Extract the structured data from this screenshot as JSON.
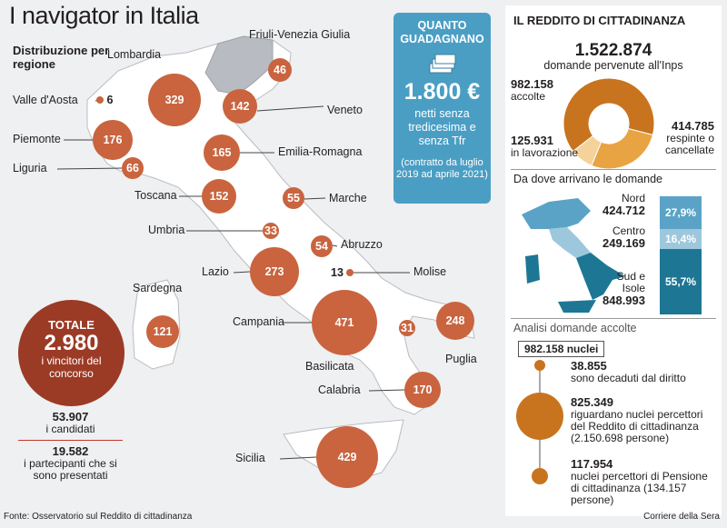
{
  "title": "I navigator in Italia",
  "subtitle": "Distribuzione per regione",
  "regions": [
    {
      "name": "Valle d'Aosta",
      "value": "6"
    },
    {
      "name": "Piemonte",
      "value": "176"
    },
    {
      "name": "Liguria",
      "value": "66"
    },
    {
      "name": "Lombardia",
      "value": "329"
    },
    {
      "name": "Friuli-Venezia Giulia",
      "value": "46"
    },
    {
      "name": "Veneto",
      "value": "142"
    },
    {
      "name": "Emilia-Romagna",
      "value": "165"
    },
    {
      "name": "Toscana",
      "value": "152"
    },
    {
      "name": "Marche",
      "value": "55"
    },
    {
      "name": "Umbria",
      "value": "33"
    },
    {
      "name": "Abruzzo",
      "value": "54"
    },
    {
      "name": "Lazio",
      "value": "273"
    },
    {
      "name": "Molise",
      "value": "13"
    },
    {
      "name": "Sardegna",
      "value": "121"
    },
    {
      "name": "Campania",
      "value": "471"
    },
    {
      "name": "Puglia",
      "value": "248"
    },
    {
      "name": "Basilicata",
      "value": "31"
    },
    {
      "name": "Calabria",
      "value": "170"
    },
    {
      "name": "Sicilia",
      "value": "429"
    }
  ],
  "total": {
    "label": "TOTALE",
    "value": "2.980",
    "desc": "i vincitori del concorso"
  },
  "candidates": {
    "value": "53.907",
    "label": "i candidati",
    "present_value": "19.582",
    "present_label": "i partecipanti che si sono presentati"
  },
  "earnings": {
    "title": "QUANTO GUADAGNANO",
    "amount": "1.800 €",
    "desc": "netti senza tredicesima e senza Tfr",
    "note": "(contratto da luglio 2019 ad aprile 2021)"
  },
  "rdc": {
    "title": "IL REDDITO DI CITTADINANZA",
    "total": "1.522.874",
    "total_label": "domande pervenute all'Inps",
    "accepted_value": "982.158",
    "accepted_label": "accolte",
    "rejected_value": "414.785",
    "rejected_label": "respinte o cancellate",
    "pending_value": "125.931",
    "pending_label": "in lavorazione",
    "donut": [
      982158,
      414785,
      125931
    ],
    "colors": {
      "accepted": "#c8741e",
      "rejected": "#e8a443",
      "pending": "#f4d29a",
      "bubble": "#c9643f",
      "teal1": "#5aa3c7",
      "teal2": "#9dc7dc",
      "teal3": "#1d7794"
    },
    "areas_title": "Da dove arrivano le domande",
    "areas": [
      {
        "name": "Nord",
        "value": "424.712",
        "pct": "27,9%"
      },
      {
        "name": "Centro",
        "value": "249.169",
        "pct": "16,4%"
      },
      {
        "name": "Sud e Isole",
        "value": "848.993",
        "pct": "55,7%"
      }
    ],
    "analysis_title": "Analisi domande accolte",
    "nuclei": "982.158 nuclei",
    "analysis": [
      {
        "value": "38.855",
        "desc": "sono decaduti dal diritto"
      },
      {
        "value": "825.349",
        "desc": "riguardano nuclei percettori del Reddito di cittadinanza (2.150.698 persone)"
      },
      {
        "value": "117.954",
        "desc": "nuclei percettori di Pensione di cittadinanza (134.157 persone)"
      }
    ]
  },
  "source": "Fonte: Osservatorio sul Reddito di cittadinanza",
  "credit": "Corriere della Sera"
}
